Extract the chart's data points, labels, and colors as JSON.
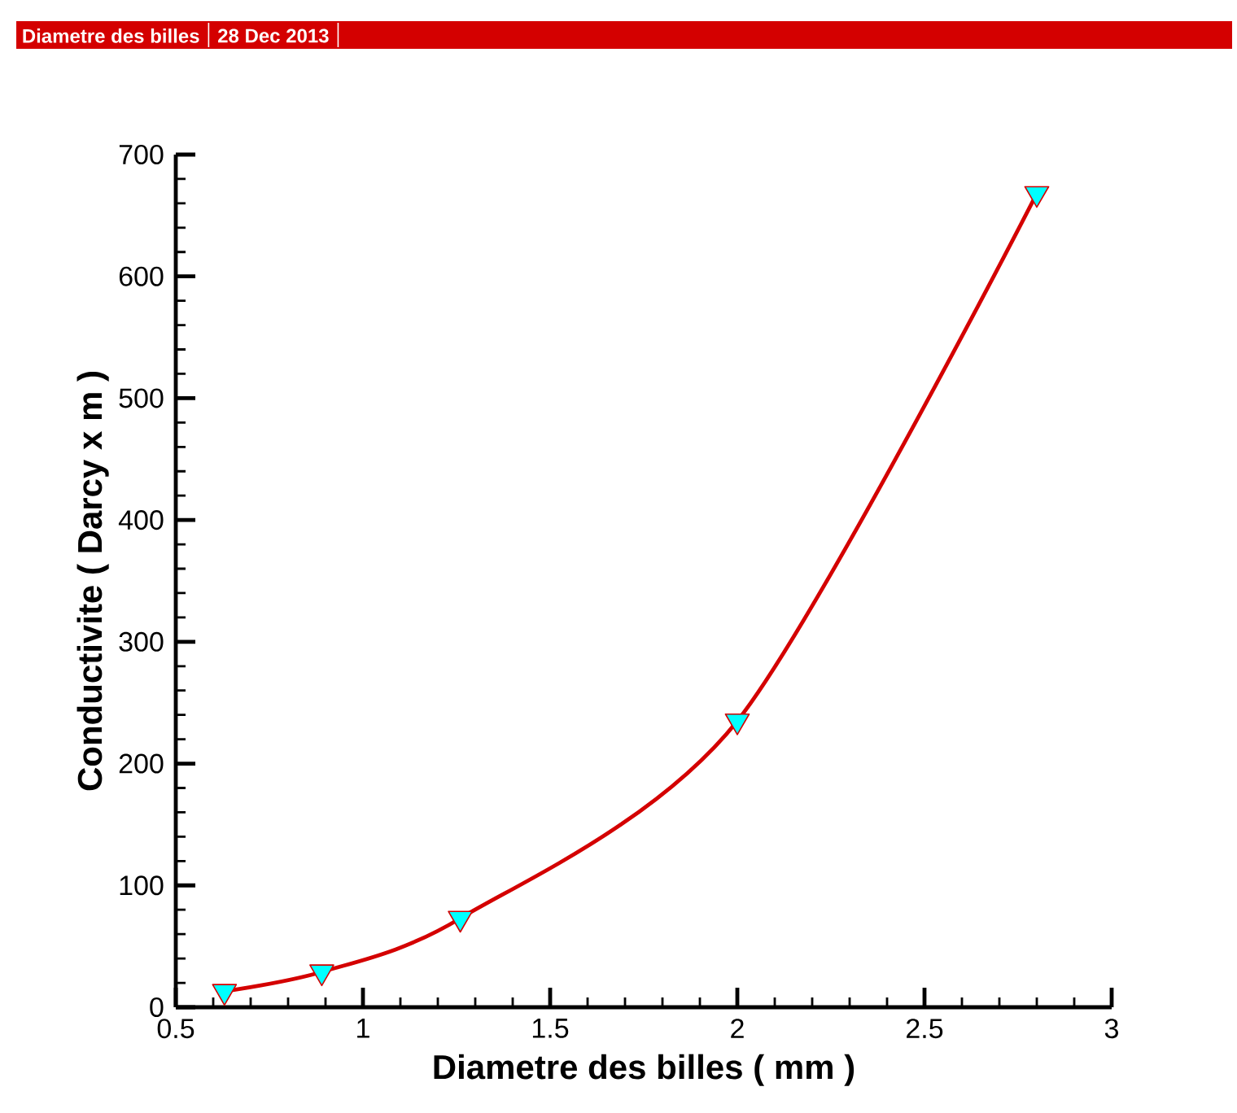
{
  "chart_data": {
    "type": "line",
    "title": "Diametre des billes",
    "subtitle": "28 Dec 2013",
    "xlabel": "Diametre des billes ( mm )",
    "ylabel": "Conductivite ( Darcy x m )",
    "x": [
      0.63,
      0.89,
      1.26,
      2.0,
      2.8
    ],
    "series": [
      {
        "color": "#d40000",
        "values": [
          13,
          29,
          73,
          235,
          668
        ]
      }
    ],
    "xlim": [
      0.5,
      3
    ],
    "ylim": [
      0,
      700
    ],
    "xticks": [
      0.5,
      1,
      1.5,
      2,
      2.5,
      3
    ],
    "yticks": [
      0,
      100,
      200,
      300,
      400,
      500,
      600,
      700
    ],
    "marker": "triangle",
    "line_style": "solid",
    "grid": false
  }
}
